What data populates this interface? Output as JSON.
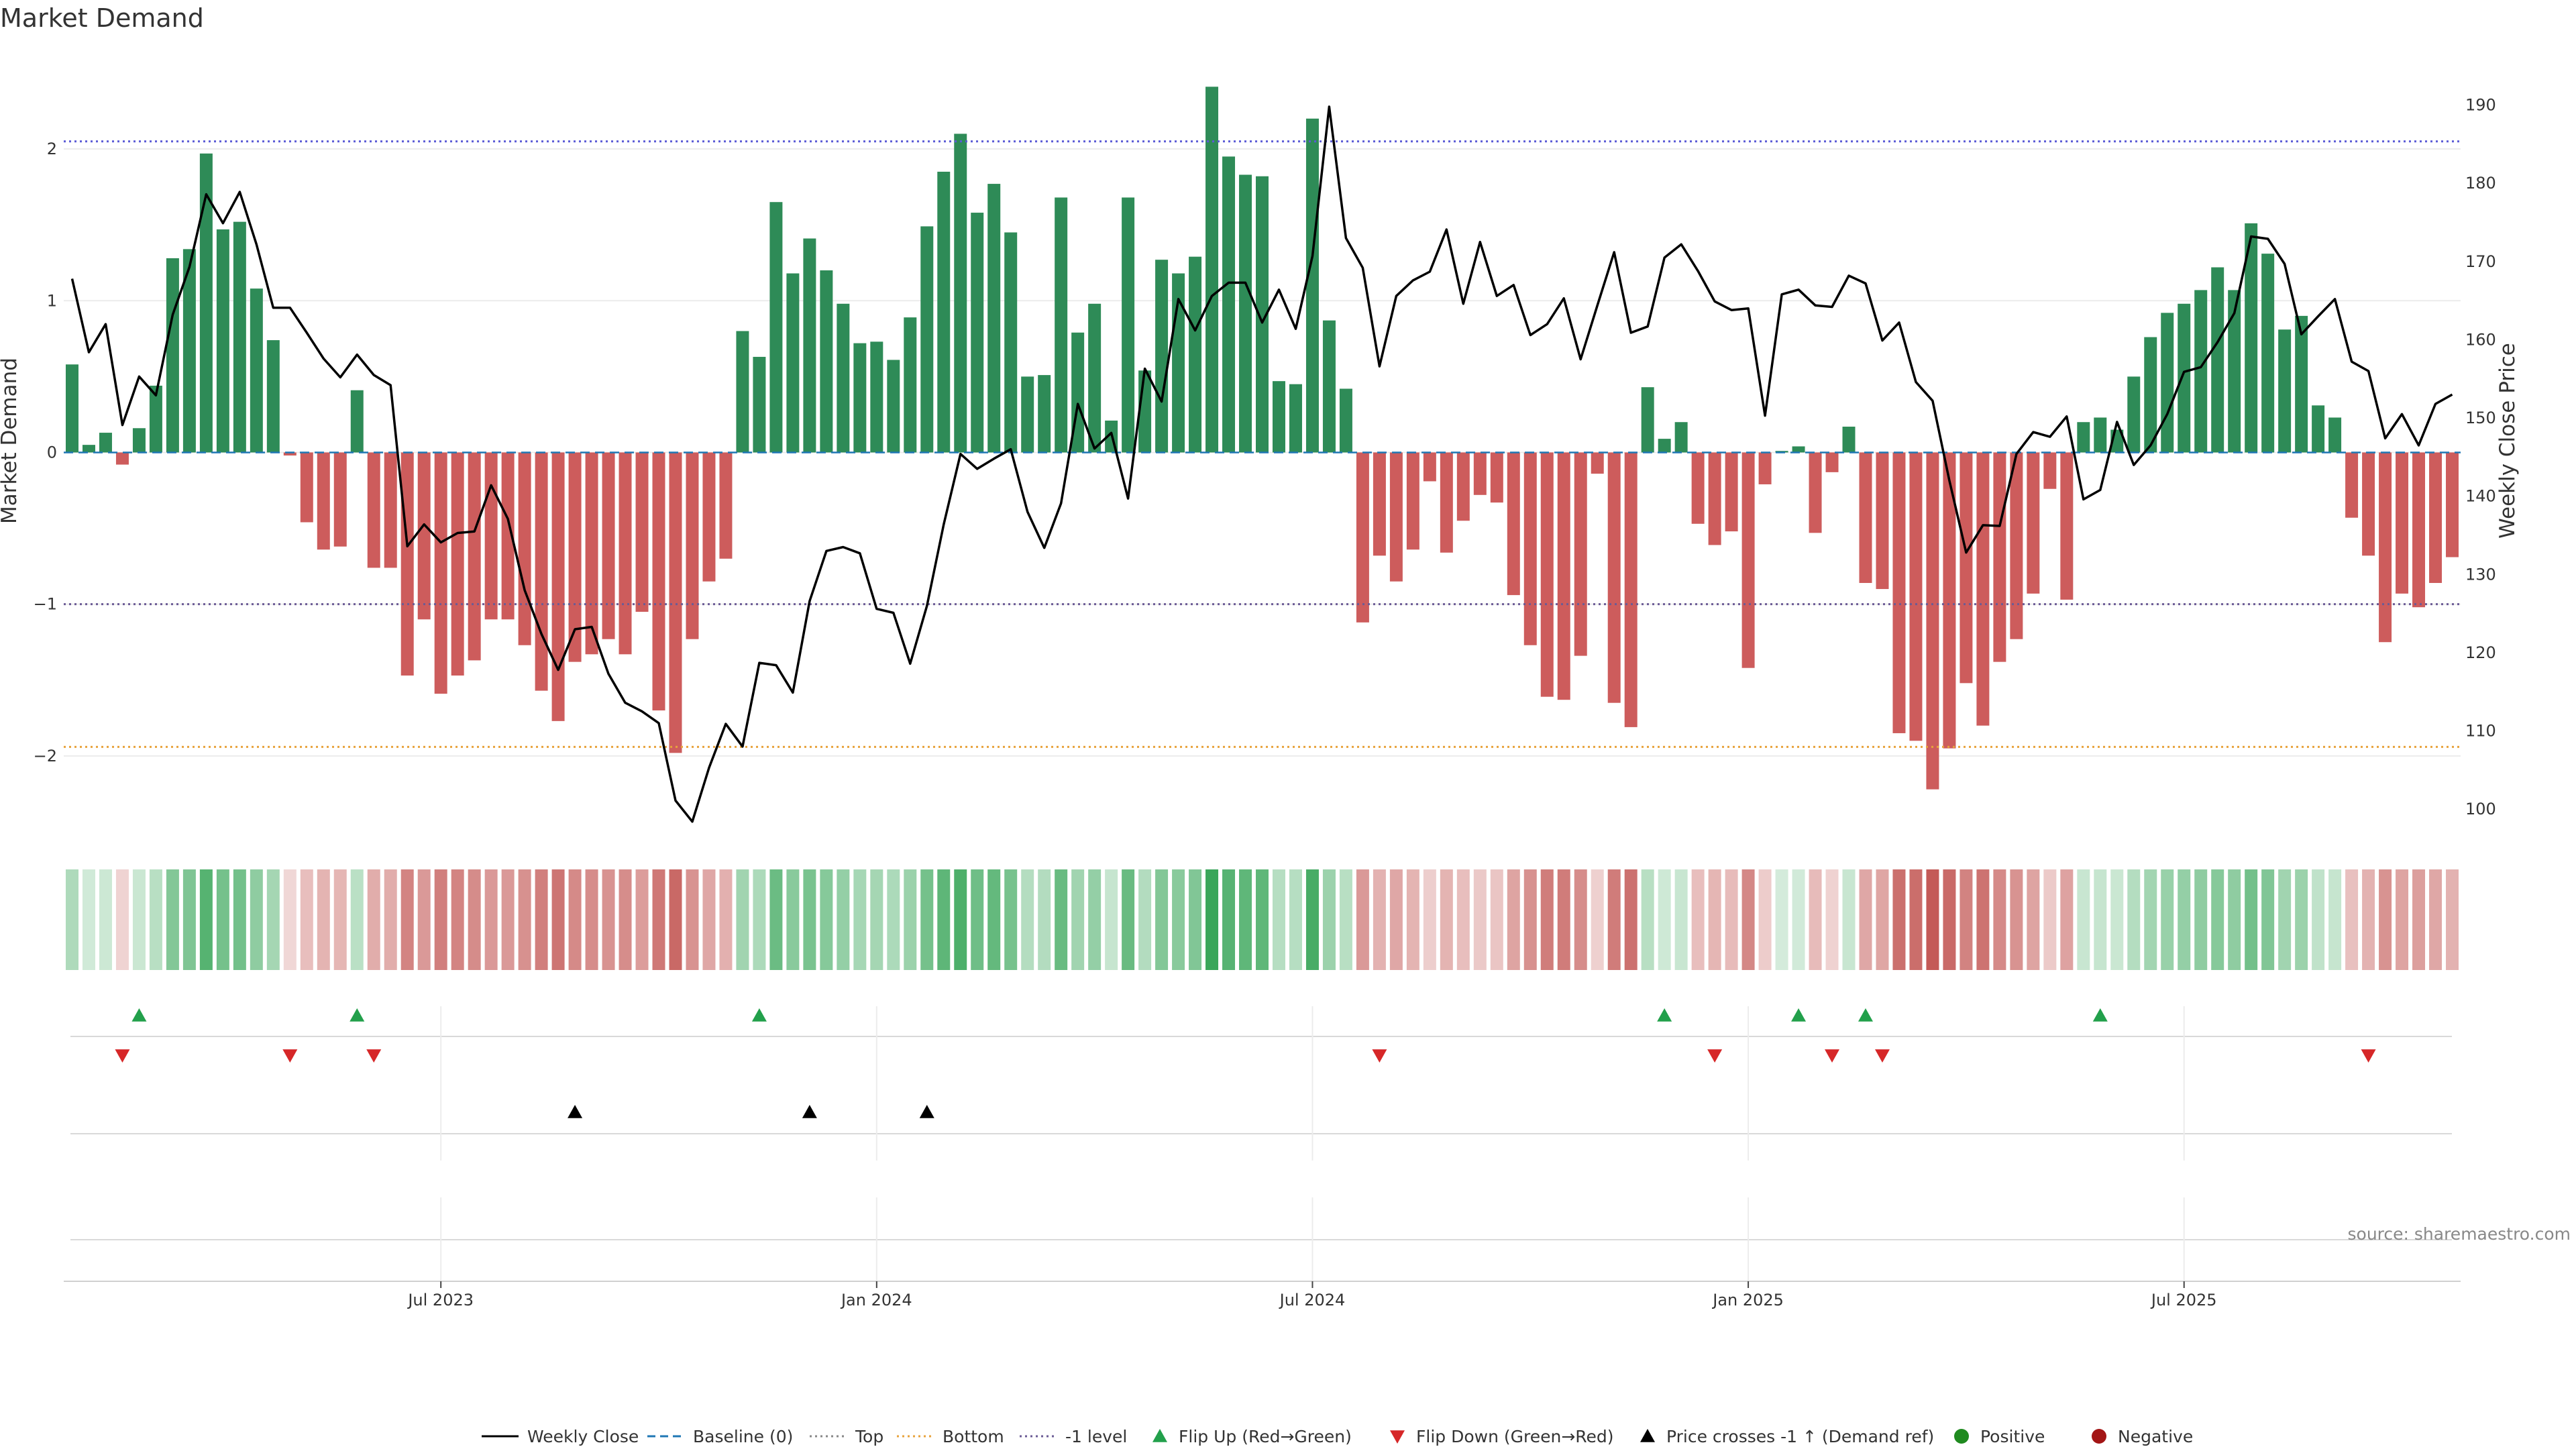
{
  "chart_data": {
    "type": "bar",
    "title": "Market Demand",
    "ylabel": "Market Demand",
    "y2label": "Weekly Close Price",
    "ylim": [
      -2.5,
      2.65
    ],
    "y2lim": [
      97.1,
      197.0
    ],
    "yticks": [
      -2,
      -1,
      0,
      1,
      2
    ],
    "ytick_labels": [
      "−2",
      "−1",
      "0",
      "1",
      "2"
    ],
    "y2ticks": [
      100,
      110,
      120,
      130,
      140,
      150,
      160,
      170,
      180,
      190
    ],
    "xticks": [
      {
        "label": "Jul 2023",
        "week": 22
      },
      {
        "label": "Jan 2024",
        "week": 48
      },
      {
        "label": "Jul 2024",
        "week": 74
      },
      {
        "label": "Jan 2025",
        "week": 100
      },
      {
        "label": "Jul 2025",
        "week": 126
      }
    ],
    "reference_lines": {
      "top": 2.05,
      "bottom": -1.94,
      "minus_one": -1.0
    },
    "demand": [
      0.58,
      0.05,
      0.13,
      -0.08,
      0.16,
      0.44,
      1.28,
      1.34,
      1.97,
      1.47,
      1.52,
      1.08,
      0.74,
      -0.02,
      -0.46,
      -0.64,
      -0.62,
      0.41,
      -0.76,
      -0.76,
      -1.47,
      -1.1,
      -1.59,
      -1.47,
      -1.37,
      -1.1,
      -1.1,
      -1.27,
      -1.57,
      -1.77,
      -1.38,
      -1.33,
      -1.23,
      -1.33,
      -1.05,
      -1.7,
      -1.98,
      -1.23,
      -0.85,
      -0.7,
      0.8,
      0.63,
      1.65,
      1.18,
      1.41,
      1.2,
      0.98,
      0.72,
      0.73,
      0.61,
      0.89,
      1.49,
      1.85,
      2.1,
      1.58,
      1.77,
      1.45,
      0.5,
      0.51,
      1.68,
      0.79,
      0.98,
      0.21,
      1.68,
      0.54,
      1.27,
      1.18,
      1.29,
      2.41,
      1.95,
      1.83,
      1.82,
      0.47,
      0.45,
      2.2,
      0.87,
      0.42,
      -1.12,
      -0.68,
      -0.85,
      -0.64,
      -0.19,
      -0.66,
      -0.45,
      -0.28,
      -0.33,
      -0.94,
      -1.27,
      -1.61,
      -1.63,
      -1.34,
      -0.14,
      -1.65,
      -1.81,
      0.43,
      0.09,
      0.2,
      -0.47,
      -0.61,
      -0.52,
      -1.42,
      -0.21,
      0.01,
      0.04,
      -0.53,
      -0.13,
      0.17,
      -0.86,
      -0.9,
      -1.85,
      -1.9,
      -2.22,
      -1.95,
      -1.52,
      -1.8,
      -1.38,
      -1.23,
      -0.93,
      -0.24,
      -0.97,
      0.2,
      0.23,
      0.15,
      0.5,
      0.76,
      0.92,
      0.98,
      1.07,
      1.22,
      1.07,
      1.51,
      1.31,
      0.81,
      0.9,
      0.31,
      0.23,
      -0.43,
      -0.68,
      -1.25,
      -0.93,
      -1.02,
      -0.86,
      -0.69
    ],
    "close": [
      167.8,
      158.4,
      162.0,
      149.1,
      155.3,
      152.9,
      163.2,
      169.3,
      178.6,
      174.9,
      178.9,
      172.2,
      164.1,
      164.1,
      160.9,
      157.6,
      155.2,
      158.1,
      155.5,
      154.2,
      133.6,
      136.4,
      134.1,
      135.3,
      135.5,
      141.4,
      137.1,
      128.0,
      122.4,
      117.8,
      123.0,
      123.3,
      117.3,
      113.6,
      112.5,
      111.0,
      101.1,
      98.4,
      105.3,
      110.9,
      108.0,
      118.7,
      118.4,
      114.9,
      126.6,
      133.0,
      133.5,
      132.7,
      125.6,
      125.1,
      118.6,
      126.0,
      136.4,
      145.4,
      143.5,
      144.8,
      146.0,
      138.0,
      133.4,
      139.1,
      151.8,
      146.1,
      148.1,
      139.7,
      156.3,
      152.1,
      165.2,
      161.2,
      165.6,
      167.3,
      167.3,
      162.2,
      166.4,
      161.4,
      170.7,
      189.8,
      173.0,
      169.2,
      156.6,
      165.6,
      167.6,
      168.7,
      174.1,
      164.6,
      172.5,
      165.6,
      167.0,
      160.6,
      162.0,
      165.3,
      157.5,
      164.4,
      171.2,
      160.9,
      161.7,
      170.5,
      172.2,
      168.8,
      164.9,
      163.8,
      164.0,
      150.3,
      165.8,
      166.4,
      164.4,
      164.2,
      168.2,
      167.2,
      159.9,
      162.2,
      154.6,
      152.2,
      142.0,
      132.8,
      136.3,
      136.2,
      145.4,
      148.2,
      147.6,
      150.2,
      139.6,
      140.8,
      149.5,
      144.0,
      146.5,
      150.5,
      155.9,
      156.5,
      159.7,
      163.4,
      173.2,
      172.9,
      169.7,
      160.7,
      163.0,
      165.2,
      157.2,
      156.0,
      147.4,
      150.5,
      146.5,
      151.8,
      153.0
    ],
    "flip_up_weeks": [
      4,
      17,
      41,
      95,
      103,
      107,
      121
    ],
    "flip_down_weeks": [
      3,
      13,
      18,
      78,
      98,
      105,
      108,
      137
    ],
    "price_cross_weeks": [
      30,
      44,
      51
    ],
    "colors": {
      "positive_bar": "#2e8b57",
      "negative_bar": "#cd5c5c",
      "close_line": "#000000",
      "baseline": "#1f77b4",
      "top_line": "#5b5bd6",
      "bottom_line": "#e8a33c",
      "minus_one_line": "#6b5b95",
      "flip_up": "#22a04b",
      "flip_down": "#d62728",
      "price_cross": "#000000",
      "positive_dot": "#1f8a1f",
      "negative_dot": "#a31515"
    },
    "legend": [
      {
        "label": "Weekly Close",
        "kind": "line-solid",
        "color": "#000000"
      },
      {
        "label": "Baseline (0)",
        "kind": "line-dashed",
        "color": "#1f77b4"
      },
      {
        "label": "Top",
        "kind": "line-dotted",
        "color": "#888888"
      },
      {
        "label": "Bottom",
        "kind": "line-dotted",
        "color": "#e8a33c"
      },
      {
        "label": "-1 level",
        "kind": "line-dotted",
        "color": "#6b5b95"
      },
      {
        "label": "Flip Up (Red→Green)",
        "kind": "tri-up",
        "color": "#22a04b"
      },
      {
        "label": "Flip Down (Green→Red)",
        "kind": "tri-down",
        "color": "#d62728"
      },
      {
        "label": "Price crosses -1 ↑ (Demand ref)",
        "kind": "tri-up",
        "color": "#000000"
      },
      {
        "label": "Positive",
        "kind": "dot",
        "color": "#1f8a1f"
      },
      {
        "label": "Negative",
        "kind": "dot",
        "color": "#a31515"
      }
    ],
    "source": "source: sharemaestro.com"
  }
}
